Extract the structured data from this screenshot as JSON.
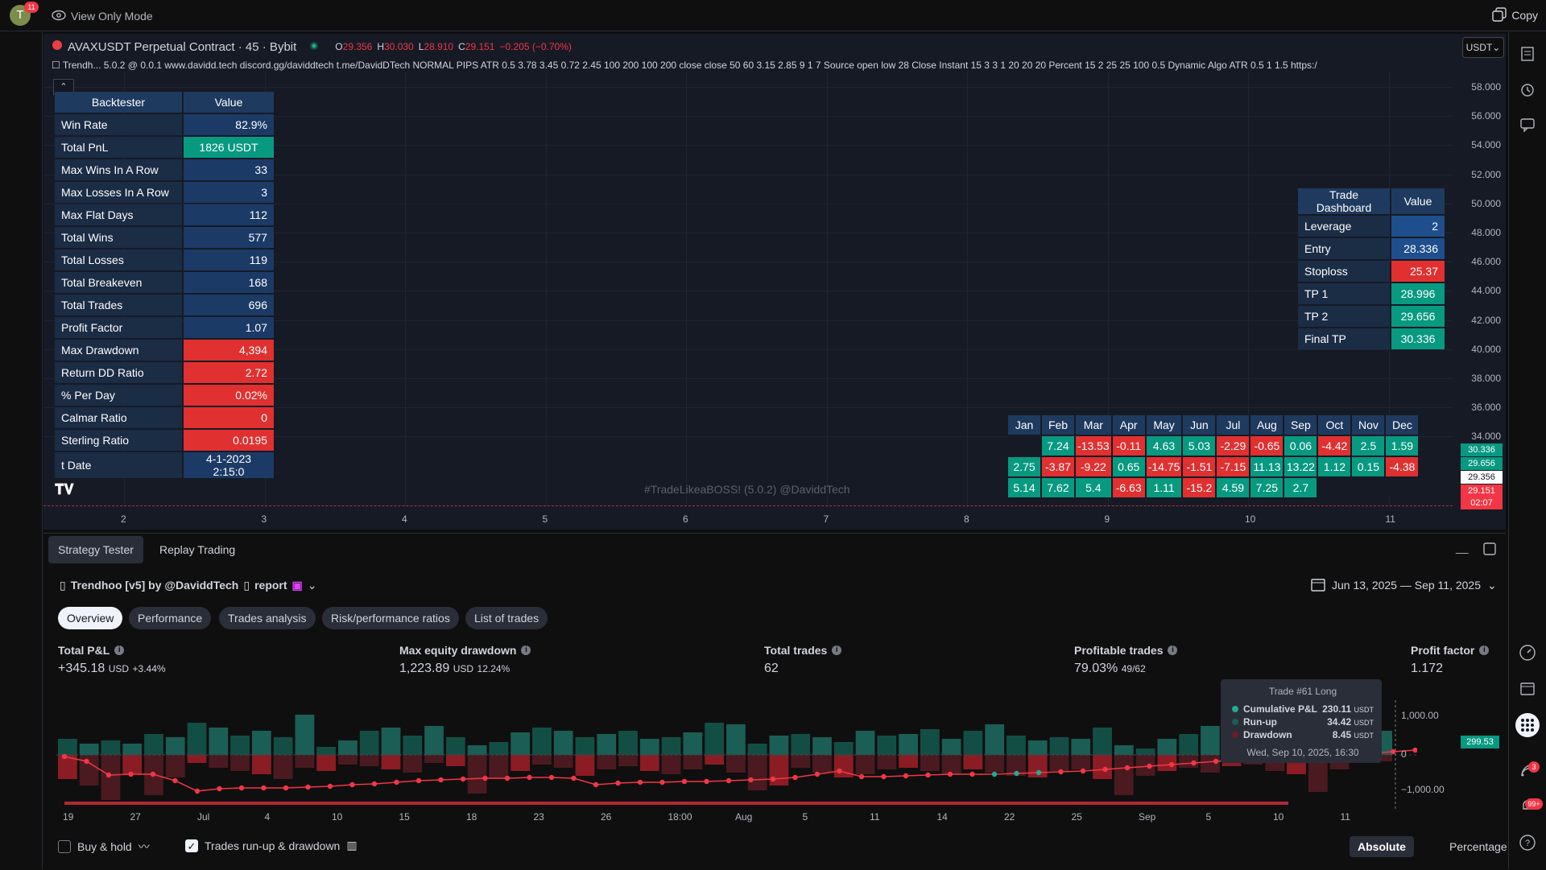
{
  "topbar": {
    "avatar_letter": "T",
    "avatar_badge": "11",
    "view_only_label": "View Only Mode",
    "copy_label": "Copy"
  },
  "chart_header": {
    "symbol": "AVAXUSDT Perpetual Contract · 45 · Bybit",
    "o_key": "O",
    "o_val": "29.356",
    "h_key": "H",
    "h_val": "30.030",
    "l_key": "L",
    "l_val": "28.910",
    "c_key": "C",
    "c_val": "29.151",
    "change": "−0.205 (−0.70%)",
    "indicator_line": "Trendh... 5.0.2 @ 0.0.1 www.davidd.tech discord.gg/daviddtech t.me/DavidDTech NORMAL PIPS ATR 0.5 3.78 3.45 0.72 2.45 100 200 100 200 close close 50 60 3.15 2.85 9 1 7 Source open low 28 Close Instant 15 3 3 1 20 20 20 Percent 15 2 25 25 100 0.5 Dynamic Algo ATR 0.5 1 1.5 https:/",
    "currency": "USDT",
    "watermark": "#TradeLikeaBOSS! (5.0.2) @DaviddTech"
  },
  "price_scale": [
    "58.000",
    "56.000",
    "54.000",
    "52.000",
    "50.000",
    "48.000",
    "46.000",
    "44.000",
    "42.000",
    "40.000",
    "38.000",
    "36.000",
    "34.000"
  ],
  "price_tags": {
    "tag1": "30.336",
    "tag2": "29.656",
    "tag3": "29.356",
    "tag4": "29.151",
    "tag5": "02:07"
  },
  "time_axis": [
    "2",
    "3",
    "4",
    "5",
    "6",
    "7",
    "8",
    "9",
    "10",
    "11"
  ],
  "backtester": {
    "header_label": "Backtester",
    "header_value": "Value",
    "rows": [
      {
        "label": "Win Rate",
        "value": "82.9%"
      },
      {
        "label": "Total PnL",
        "value": "1826 USDT"
      },
      {
        "label": "Max Wins In A Row",
        "value": "33"
      },
      {
        "label": "Max Losses In A Row",
        "value": "3"
      },
      {
        "label": "Max Flat Days",
        "value": "112"
      },
      {
        "label": "Total Wins",
        "value": "577"
      },
      {
        "label": "Total Losses",
        "value": "119"
      },
      {
        "label": "Total Breakeven",
        "value": "168"
      },
      {
        "label": "Total Trades",
        "value": "696"
      },
      {
        "label": "Profit Factor",
        "value": "1.07"
      },
      {
        "label": "Max Drawdown",
        "value": "4,394"
      },
      {
        "label": "Return DD Ratio",
        "value": "2.72"
      },
      {
        "label": "% Per Day",
        "value": "0.02%"
      },
      {
        "label": "Calmar Ratio",
        "value": "0"
      },
      {
        "label": "Sterling Ratio",
        "value": "0.0195"
      },
      {
        "label": "t Date",
        "value": "4-1-2023 2:15:0"
      }
    ]
  },
  "dashboard": {
    "header_label": "Trade Dashboard",
    "header_value": "Value",
    "rows": [
      {
        "label": "Leverage",
        "value": "2"
      },
      {
        "label": "Entry",
        "value": "28.336"
      },
      {
        "label": "Stoploss",
        "value": "25.37"
      },
      {
        "label": "TP 1",
        "value": "28.996"
      },
      {
        "label": "TP 2",
        "value": "29.656"
      },
      {
        "label": "Final TP",
        "value": "30.336"
      }
    ]
  },
  "monthly": {
    "months": [
      "Jan",
      "Feb",
      "Mar",
      "Apr",
      "May",
      "Jun",
      "Jul",
      "Aug",
      "Sep",
      "Oct",
      "Nov",
      "Dec"
    ],
    "rows": [
      [
        "",
        "7.24",
        "-13.53",
        "-0.11",
        "4.63",
        "5.03",
        "-2.29",
        "-0.65",
        "0.06",
        "-4.42",
        "2.5",
        "1.59"
      ],
      [
        "2.75",
        "-3.87",
        "-9.22",
        "0.65",
        "-14.75",
        "-1.51",
        "-7.15",
        "11.13",
        "13.22",
        "1.12",
        "0.15",
        "-4.38"
      ],
      [
        "5.14",
        "7.62",
        "5.4",
        "-6.63",
        "1.11",
        "-15.2",
        "4.59",
        "7.25",
        "2.7",
        "",
        "",
        ""
      ]
    ]
  },
  "tester": {
    "tab_strategy": "Strategy Tester",
    "tab_replay": "Replay Trading",
    "strategy_name": "Trendhoo [v5] by @DaviddTech",
    "report_label": "report",
    "date_range": "Jun 13, 2025 — Sep 11, 2025",
    "subtabs": [
      "Overview",
      "Performance",
      "Trades analysis",
      "Risk/performance ratios",
      "List of trades"
    ],
    "metrics": {
      "pnl_title": "Total P&L",
      "pnl_value": "+345.18",
      "pnl_unit": "USD",
      "pnl_pct": "+3.44%",
      "dd_title": "Max equity drawdown",
      "dd_value": "1,223.89",
      "dd_unit": "USD",
      "dd_pct": "12.24%",
      "trades_title": "Total trades",
      "trades_value": "62",
      "prof_title": "Profitable trades",
      "prof_value": "79.03%",
      "prof_sub": "49/62",
      "pf_title": "Profit factor",
      "pf_value": "1.172"
    },
    "tooltip": {
      "title": "Trade #61 Long",
      "cum_label": "Cumulative P&L",
      "cum_value": "230.11",
      "cum_unit": "USDT",
      "runup_label": "Run-up",
      "runup_value": "34.42",
      "runup_unit": "USDT",
      "dd_label": "Drawdown",
      "dd_value": "8.45",
      "dd_unit": "USDT",
      "date": "Wed, Sep 10, 2025, 16:30"
    },
    "eq_y": [
      "1,000.00",
      "0",
      "−1,000.00"
    ],
    "eq_tag": "299.53",
    "eq_x": [
      "19",
      "27",
      "Jul",
      "4",
      "10",
      "15",
      "18",
      "23",
      "26",
      "18:00",
      "Aug",
      "5",
      "11",
      "14",
      "22",
      "25",
      "Sep",
      "5",
      "10",
      "11"
    ],
    "buyhold_label": "Buy & hold",
    "runup_dd_label": "Trades run-up & drawdown",
    "absolute_label": "Absolute",
    "percentage_label": "Percentage",
    "notif_badge": "3",
    "notif_badge2": "99+"
  },
  "colors": {
    "green": "#089981",
    "red": "#f23645",
    "blue": "#1f4e8c",
    "bg": "#161a25"
  }
}
